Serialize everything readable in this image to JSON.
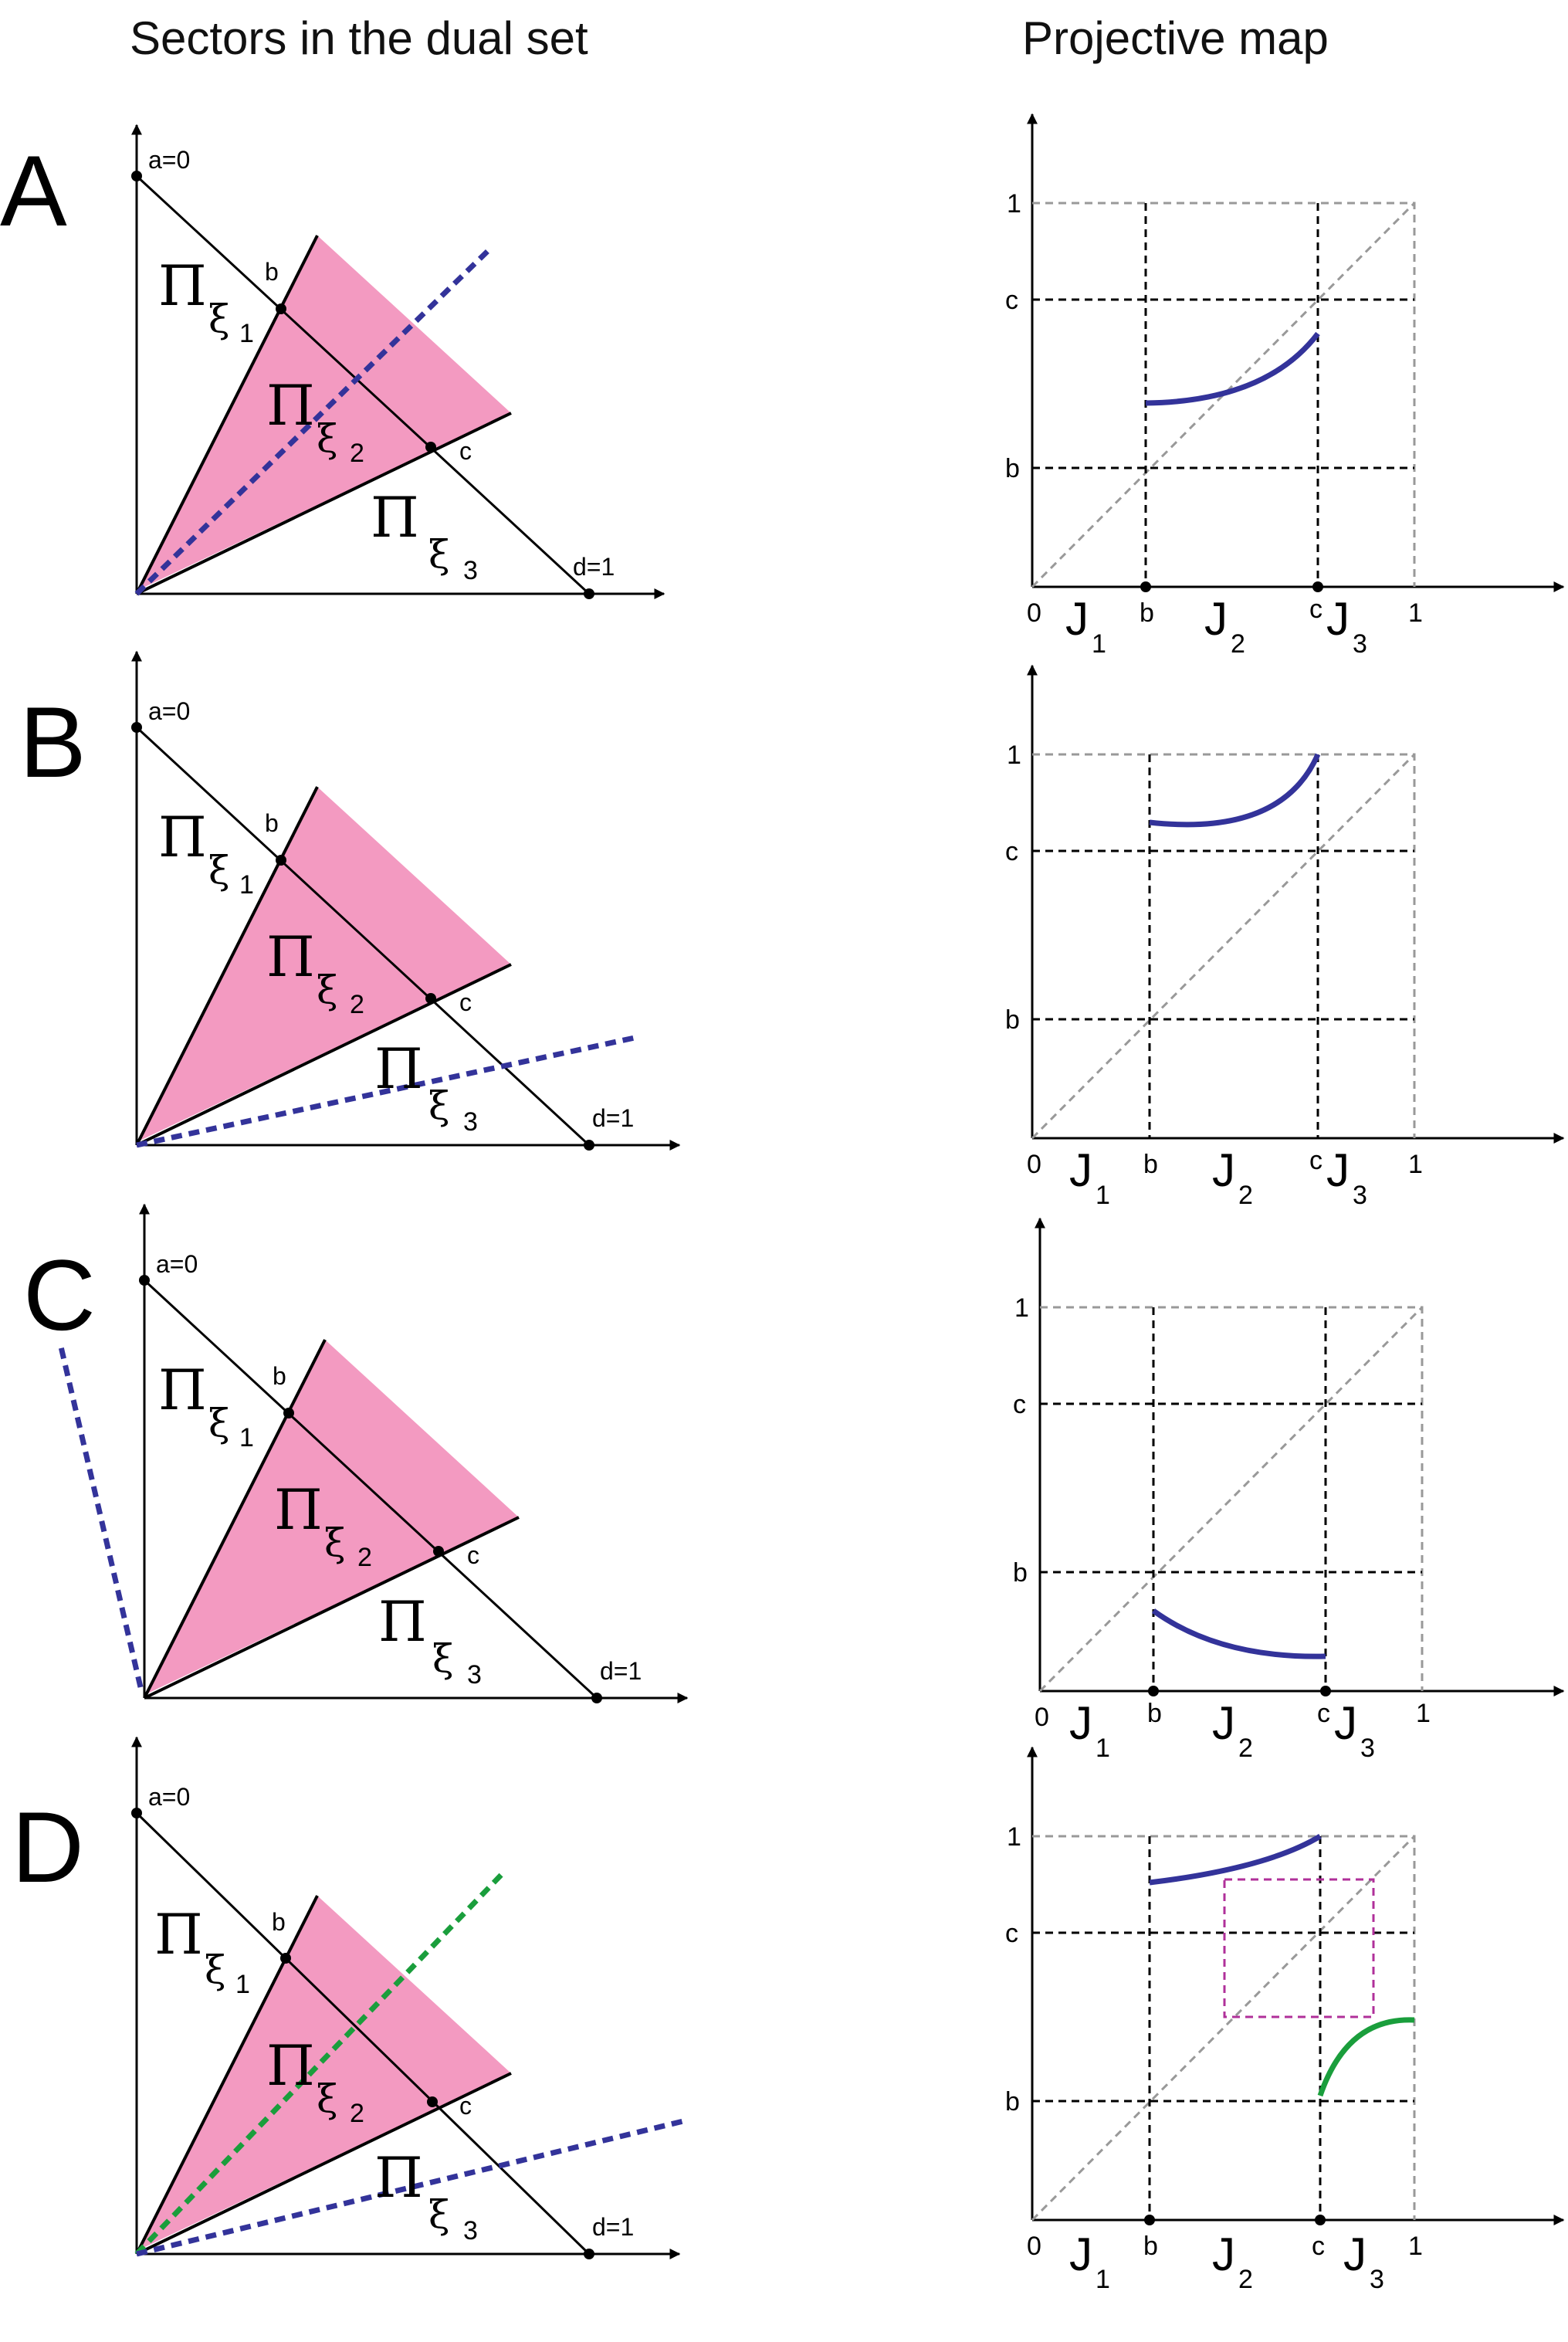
{
  "header": {
    "left": "Sectors in the dual set",
    "right": "Projective map"
  },
  "colors": {
    "sector": "#f39ac1",
    "map_curve": "#33339a",
    "alt_curve": "#1a9e3c",
    "box": "#b0309a",
    "dashed_gray": "#999999",
    "dashed_black": "#000000"
  },
  "dual_labels": {
    "a": "a=0",
    "b": "b",
    "c": "c",
    "d": "d=1",
    "pi": "Π",
    "xi": "ξ",
    "sub1": "1",
    "sub2": "2",
    "sub3": "3"
  },
  "map_labels": {
    "zero": "0",
    "b": "b",
    "c": "c",
    "one": "1",
    "J": "J",
    "j1": "1",
    "j2": "2",
    "j3": "3"
  },
  "panels": [
    {
      "letter": "A",
      "line_position": "inside sector Πξ2",
      "map_curve": "increasing on J2, stays between b and c"
    },
    {
      "letter": "B",
      "line_position": "inside sector Πξ3",
      "map_curve": "increasing on J2, between c and 1"
    },
    {
      "letter": "C",
      "line_position": "outside, left of a=0 axis",
      "map_curve": "decreasing on J2, below b"
    },
    {
      "letter": "D",
      "line_position": "one line in Πξ2 and one in Πξ3",
      "map_curve": "J2 curve between c and 1, J3 curve between b and c, period-2 box"
    }
  ]
}
